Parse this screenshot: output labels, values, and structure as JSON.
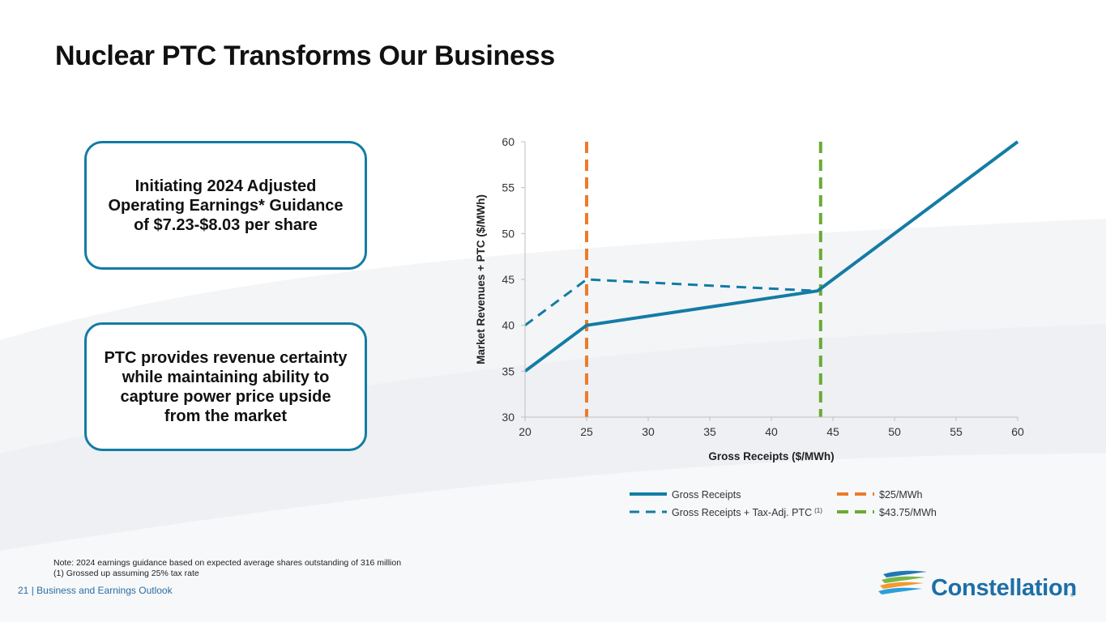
{
  "slide": {
    "title": "Nuclear PTC Transforms Our Business",
    "page_number": "21",
    "section": "| Business and Earnings Outlook",
    "brand": "Constellation",
    "brand_mark": "®"
  },
  "callouts": [
    {
      "text": "Initiating 2024 Adjusted Operating Earnings* Guidance of $7.23-$8.03 per share"
    },
    {
      "text": "PTC provides revenue certainty while maintaining ability to capture power price upside from the market"
    }
  ],
  "footnotes": {
    "note": "Note: 2024 earnings guidance based on expected average shares outstanding of 316 million",
    "fn1": "(1)    Grossed up assuming 25% tax rate"
  },
  "colors": {
    "accent": "#137ca4",
    "orange": "#ec7b2c",
    "green": "#6aab35",
    "footer_text": "#2b6ea3"
  },
  "chart_data": {
    "type": "line",
    "xlabel": "Gross Receipts ($/MWh)",
    "ylabel": "Market Revenues + PTC ($/MWh)",
    "xlim": [
      20,
      60
    ],
    "ylim": [
      30,
      60
    ],
    "xticks": [
      20,
      25,
      30,
      35,
      40,
      45,
      50,
      55,
      60
    ],
    "yticks": [
      30,
      35,
      40,
      45,
      50,
      55,
      60
    ],
    "grid": false,
    "legend_position": "bottom",
    "series": [
      {
        "name": "Gross Receipts",
        "style": "solid",
        "color": "#137ca4",
        "x": [
          20,
          25,
          43.75,
          60
        ],
        "y": [
          35,
          40,
          43.75,
          60
        ]
      },
      {
        "name": "Gross Receipts + Tax-Adj. PTC",
        "name_note": "(1)",
        "style": "dashed",
        "color": "#137ca4",
        "x": [
          20,
          25,
          43.75
        ],
        "y": [
          40,
          45,
          43.75
        ]
      }
    ],
    "vlines": [
      {
        "name": "$25/MWh",
        "x": 25,
        "color": "#ec7b2c",
        "style": "dashed"
      },
      {
        "name": "$43.75/MWh",
        "x": 44,
        "color": "#6aab35",
        "style": "dashed"
      }
    ]
  }
}
